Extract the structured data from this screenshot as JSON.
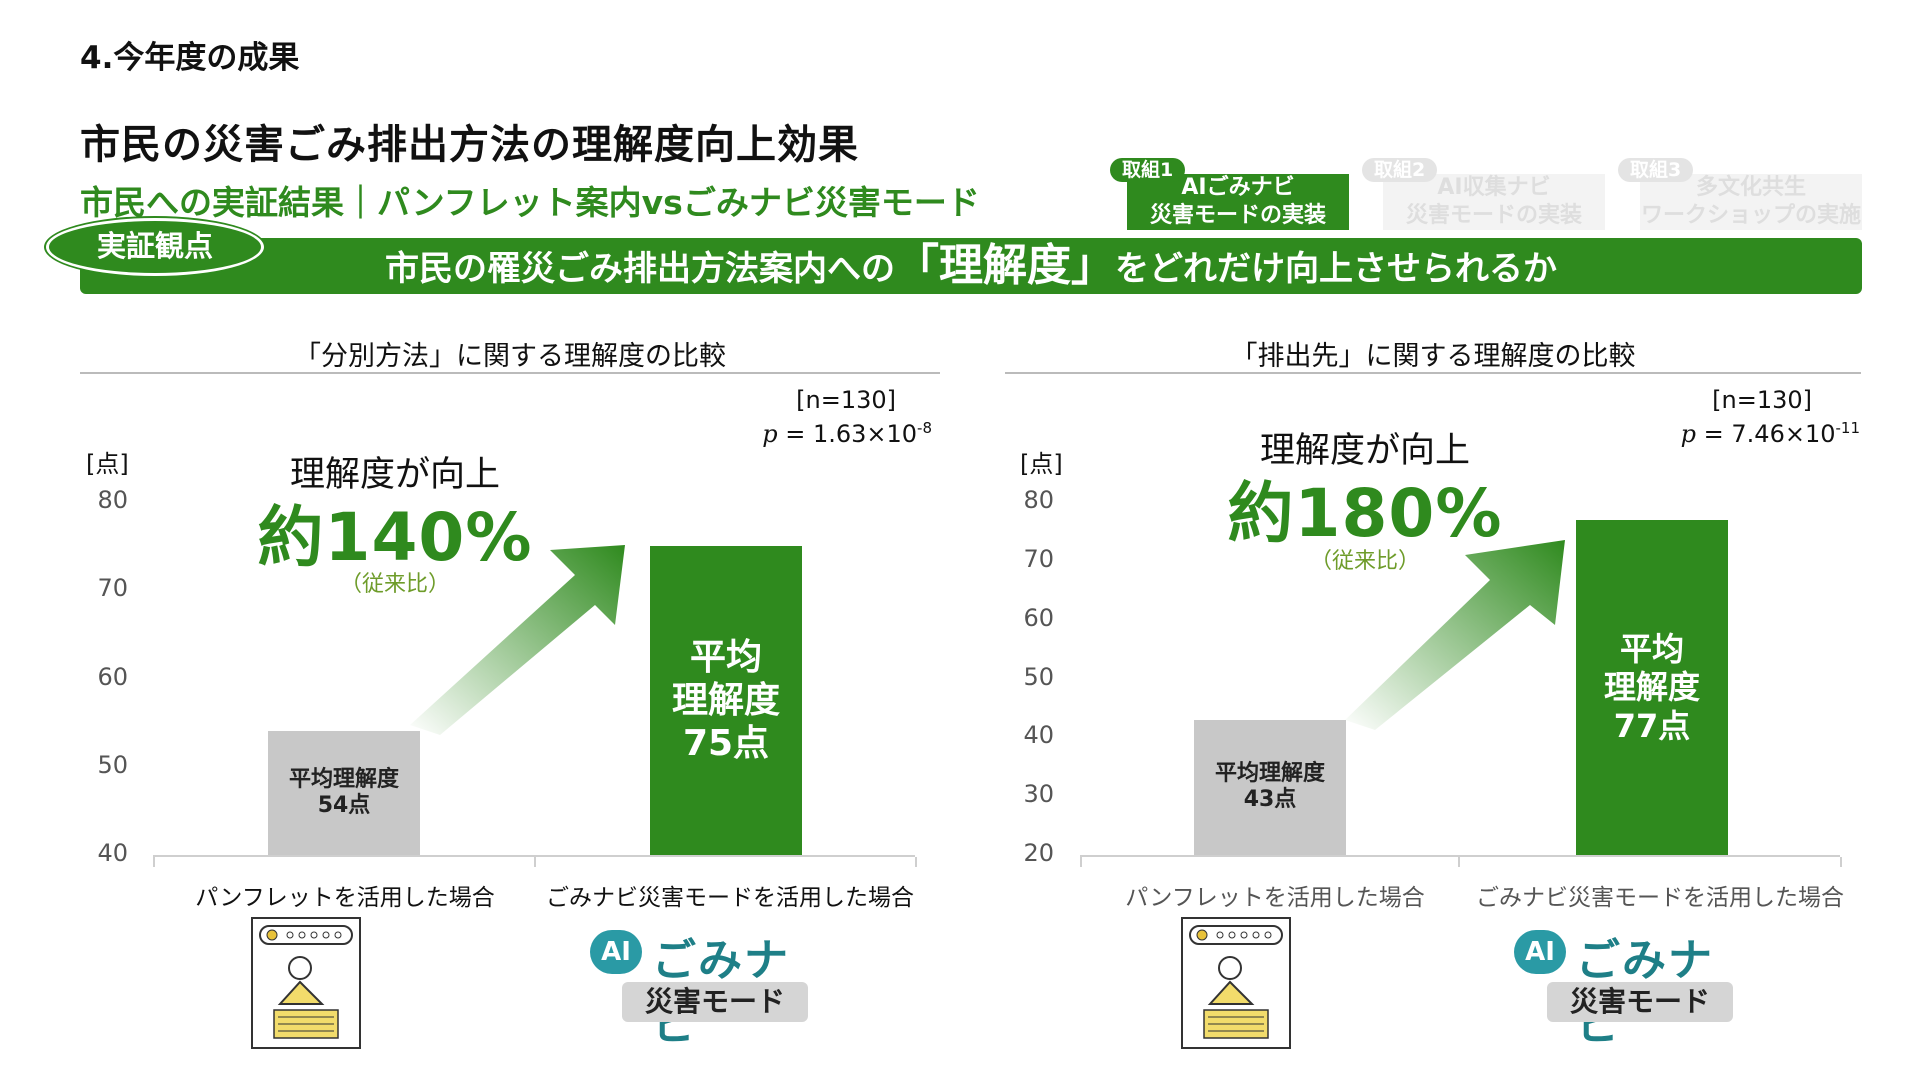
{
  "header": {
    "section": "4.今年度の成果",
    "title": "市民の災害ごみ排出方法の理解度向上効果",
    "subtitle": "市民への実証結果｜パンフレット案内vsごみナビ災害モード"
  },
  "tabs": [
    {
      "badge": "取組1",
      "line1": "AIごみナビ",
      "line2": "災害モードの実装",
      "active": true
    },
    {
      "badge": "取組2",
      "line1": "AI収集ナビ",
      "line2": "災害モードの実装",
      "active": false
    },
    {
      "badge": "取組3",
      "line1": "多文化共生",
      "line2": "ワークショップの実施",
      "active": false
    }
  ],
  "banner": {
    "badge": "実証観点",
    "text_before": "市民の罹災ごみ排出方法案内への",
    "text_emph": "「理解度」",
    "text_after": "をどれだけ向上させられるか"
  },
  "colors": {
    "accent_green": "#2f8a1e",
    "bar_gray": "#c8c8c8",
    "logo_teal": "#1e7f87"
  },
  "chart_data": [
    {
      "type": "bar",
      "title": "「分別方法」に関する理解度の比較",
      "n_label": "[n=130]",
      "p_label": "= 1.63×10",
      "p_exp": "-8",
      "ylabel": "[点]",
      "ylim": [
        40,
        80
      ],
      "yticks": [
        "80",
        "70",
        "60",
        "50",
        "40"
      ],
      "categories": [
        "パンフレットを活用した場合",
        "ごみナビ災害モードを活用した場合"
      ],
      "values": [
        54,
        75
      ],
      "bar_labels": [
        [
          "平均理解度",
          "54点"
        ],
        [
          "平均",
          "理解度",
          "75点"
        ]
      ],
      "gain_lead": "理解度が向上",
      "gain_value": "約140%",
      "gain_note": "（従来比）"
    },
    {
      "type": "bar",
      "title": "「排出先」に関する理解度の比較",
      "n_label": "[n=130]",
      "p_label": "= 7.46×10",
      "p_exp": "-11",
      "ylabel": "[点]",
      "ylim": [
        20,
        80
      ],
      "yticks": [
        "80",
        "70",
        "60",
        "50",
        "40",
        "30",
        "20"
      ],
      "categories": [
        "パンフレットを活用した場合",
        "ごみナビ災害モードを活用した場合"
      ],
      "values": [
        43,
        77
      ],
      "bar_labels": [
        [
          "平均理解度",
          "43点"
        ],
        [
          "平均",
          "理解度",
          "77点"
        ]
      ],
      "gain_lead": "理解度が向上",
      "gain_value": "約180%",
      "gain_note": "（従来比）"
    }
  ],
  "logo": {
    "ai": "AI",
    "word": "ごみナビ",
    "mode": "災害モード"
  },
  "icon": "pamphlet-reading-icon",
  "p_symbol": "p"
}
